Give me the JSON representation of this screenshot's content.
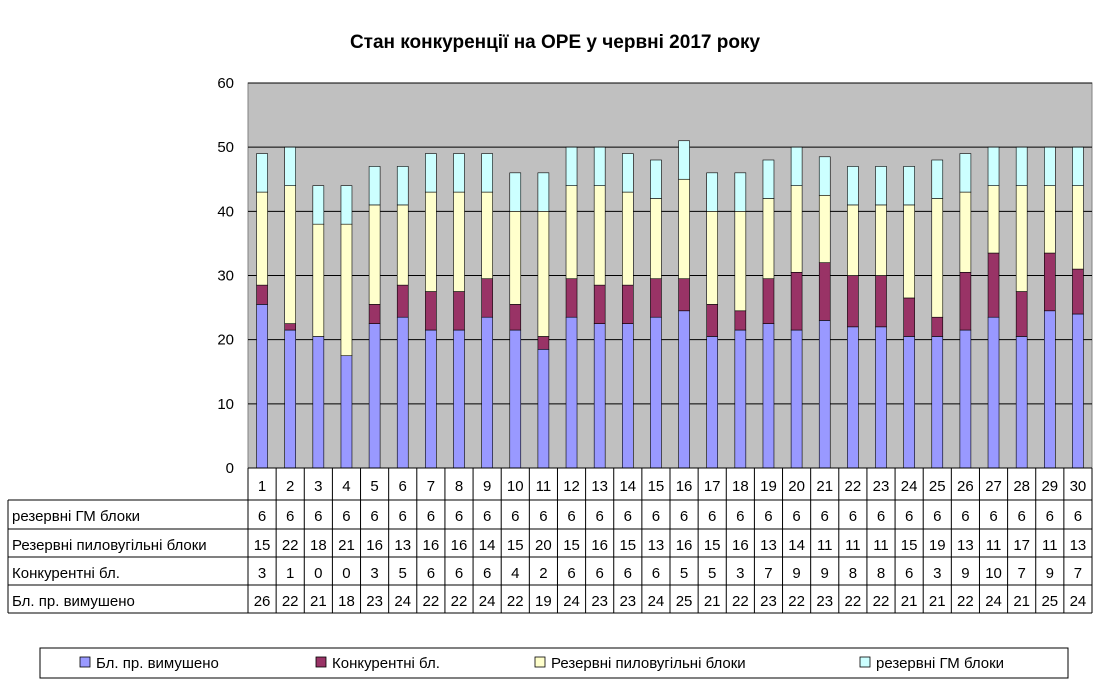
{
  "chart_data": {
    "type": "bar",
    "stacked": true,
    "title": "Стан конкуренції на ОРЕ  у червні 2017 року",
    "xlabel": "",
    "ylabel": "",
    "ylim": [
      0,
      60
    ],
    "yticks": [
      "0",
      "10",
      "20",
      "30",
      "40",
      "50",
      "60"
    ],
    "grid": true,
    "legend_position": "bottom",
    "categories": [
      "1",
      "2",
      "3",
      "4",
      "5",
      "6",
      "7",
      "8",
      "9",
      "10",
      "11",
      "12",
      "13",
      "14",
      "15",
      "16",
      "17",
      "18",
      "19",
      "20",
      "21",
      "22",
      "23",
      "24",
      "25",
      "26",
      "27",
      "28",
      "29",
      "30"
    ],
    "series": [
      {
        "name": "Бл. пр. вимушено",
        "color": "#9999ff",
        "values": [
          25.5,
          21.5,
          20.5,
          17.5,
          22.5,
          23.5,
          21.5,
          21.5,
          23.5,
          21.5,
          18.5,
          23.5,
          22.5,
          22.5,
          23.5,
          24.5,
          20.5,
          21.5,
          22.5,
          21.5,
          23,
          22,
          22,
          20.5,
          20.5,
          21.5,
          23.5,
          20.5,
          24.5,
          24
        ],
        "table_values": [
          "26",
          "22",
          "21",
          "18",
          "23",
          "24",
          "22",
          "22",
          "24",
          "22",
          "19",
          "24",
          "23",
          "23",
          "24",
          "25",
          "21",
          "22",
          "23",
          "22",
          "23",
          "22",
          "22",
          "21",
          "21",
          "22",
          "24",
          "21",
          "25",
          "24"
        ]
      },
      {
        "name": "Конкурентні бл.",
        "color": "#993366",
        "values": [
          3,
          1,
          0,
          0,
          3,
          5,
          6,
          6,
          6,
          4,
          2,
          6,
          6,
          6,
          6,
          5,
          5,
          3,
          7,
          9,
          9,
          8,
          8,
          6,
          3,
          9,
          10,
          7,
          9,
          7
        ],
        "table_values": [
          "3",
          "1",
          "0",
          "0",
          "3",
          "5",
          "6",
          "6",
          "6",
          "4",
          "2",
          "6",
          "6",
          "6",
          "6",
          "5",
          "5",
          "3",
          "7",
          "9",
          "9",
          "8",
          "8",
          "6",
          "3",
          "9",
          "10",
          "7",
          "9",
          "7"
        ]
      },
      {
        "name": "Резервні пиловугільні блоки",
        "color": "#ffffcc",
        "values": [
          14.5,
          21.5,
          17.5,
          20.5,
          15.5,
          12.5,
          15.5,
          15.5,
          13.5,
          14.5,
          19.5,
          14.5,
          15.5,
          14.5,
          12.5,
          15.5,
          14.5,
          15.5,
          12.5,
          13.5,
          10.5,
          11,
          11,
          14.5,
          18.5,
          12.5,
          10.5,
          16.5,
          10.5,
          13
        ],
        "table_values": [
          "15",
          "22",
          "18",
          "21",
          "16",
          "13",
          "16",
          "16",
          "14",
          "15",
          "20",
          "15",
          "16",
          "15",
          "13",
          "16",
          "15",
          "16",
          "13",
          "14",
          "11",
          "11",
          "11",
          "15",
          "19",
          "13",
          "11",
          "17",
          "11",
          "13"
        ]
      },
      {
        "name": "резервні ГМ блоки",
        "color": "#ccffff",
        "values": [
          6,
          6,
          6,
          6,
          6,
          6,
          6,
          6,
          6,
          6,
          6,
          6,
          6,
          6,
          6,
          6,
          6,
          6,
          6,
          6,
          6,
          6,
          6,
          6,
          6,
          6,
          6,
          6,
          6,
          6
        ],
        "table_values": [
          "6",
          "6",
          "6",
          "6",
          "6",
          "6",
          "6",
          "6",
          "6",
          "6",
          "6",
          "6",
          "6",
          "6",
          "6",
          "6",
          "6",
          "6",
          "6",
          "6",
          "6",
          "6",
          "6",
          "6",
          "6",
          "6",
          "6",
          "6",
          "6",
          "6"
        ]
      }
    ],
    "table_rows": [
      {
        "label": "резервні ГМ блоки",
        "series_index": 3
      },
      {
        "label": "Резервні пиловугільні блоки",
        "series_index": 2
      },
      {
        "label": "Конкурентні бл.",
        "series_index": 1
      },
      {
        "label": "Бл. пр. вимушено",
        "series_index": 0
      }
    ],
    "colors": {
      "plot_background": "#c0c0c0",
      "grid": "#000000",
      "bar_outline": "#000000"
    }
  }
}
